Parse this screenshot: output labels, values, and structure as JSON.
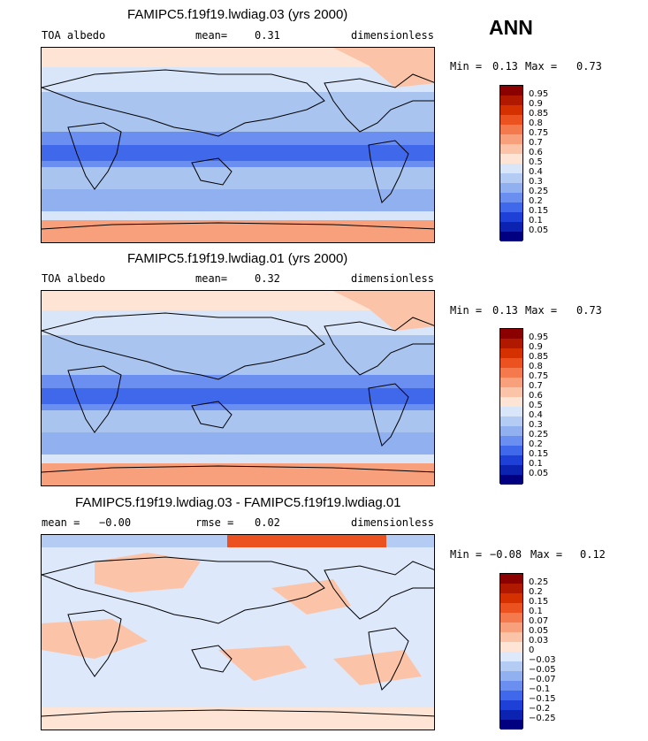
{
  "season": "ANN",
  "panels": [
    {
      "title": "FAMIPC5.f19f19.lwdiag.03 (yrs 2000)",
      "left_label": "TOA albedo",
      "mean_label": "mean=",
      "mean_value": "0.31",
      "units": "dimensionless",
      "min_label": "Min =",
      "min_value": "0.13",
      "max_label": "Max =",
      "max_value": "0.73",
      "colorbar": {
        "labels": [
          "0.95",
          "0.9",
          "0.85",
          "0.8",
          "0.75",
          "0.7",
          "0.6",
          "0.5",
          "0.4",
          "0.3",
          "0.25",
          "0.2",
          "0.15",
          "0.1",
          "0.05"
        ],
        "colors": [
          "#8b0000",
          "#b01800",
          "#d43000",
          "#ec5220",
          "#f47a4e",
          "#f8a07c",
          "#fbc4a8",
          "#fde4d4",
          "#d9e6fa",
          "#b4cbf3",
          "#90b0ef",
          "#6a8ff0",
          "#3f68ea",
          "#1f40d6",
          "#0c22b0",
          "#000080"
        ]
      }
    },
    {
      "title": "FAMIPC5.f19f19.lwdiag.01 (yrs 2000)",
      "left_label": "TOA albedo",
      "mean_label": "mean=",
      "mean_value": "0.32",
      "units": "dimensionless",
      "min_label": "Min =",
      "min_value": "0.13",
      "max_label": "Max =",
      "max_value": "0.73",
      "colorbar": {
        "labels": [
          "0.95",
          "0.9",
          "0.85",
          "0.8",
          "0.75",
          "0.7",
          "0.6",
          "0.5",
          "0.4",
          "0.3",
          "0.25",
          "0.2",
          "0.15",
          "0.1",
          "0.05"
        ],
        "colors": [
          "#8b0000",
          "#b01800",
          "#d43000",
          "#ec5220",
          "#f47a4e",
          "#f8a07c",
          "#fbc4a8",
          "#fde4d4",
          "#d9e6fa",
          "#b4cbf3",
          "#90b0ef",
          "#6a8ff0",
          "#3f68ea",
          "#1f40d6",
          "#0c22b0",
          "#000080"
        ]
      }
    },
    {
      "title": "FAMIPC5.f19f19.lwdiag.03 - FAMIPC5.f19f19.lwdiag.01",
      "left_label": "mean =",
      "mean_label": "rmse =",
      "mean_value": "0.02",
      "left_value": "−0.00",
      "units": "dimensionless",
      "min_label": "Min =",
      "min_value": "−0.08",
      "max_label": "Max =",
      "max_value": "0.12",
      "colorbar": {
        "labels": [
          "0.25",
          "0.2",
          "0.15",
          "0.1",
          "0.07",
          "0.05",
          "0.03",
          "0",
          "−0.03",
          "−0.05",
          "−0.07",
          "−0.1",
          "−0.15",
          "−0.2",
          "−0.25"
        ],
        "colors": [
          "#8b0000",
          "#b01800",
          "#d43000",
          "#ec5220",
          "#f47a4e",
          "#f8a07c",
          "#fbc4a8",
          "#fde4d4",
          "#dde8fa",
          "#b4cbf3",
          "#90b0ef",
          "#6a8ff0",
          "#3f68ea",
          "#1f40d6",
          "#0c22b0",
          "#000080"
        ]
      }
    }
  ]
}
